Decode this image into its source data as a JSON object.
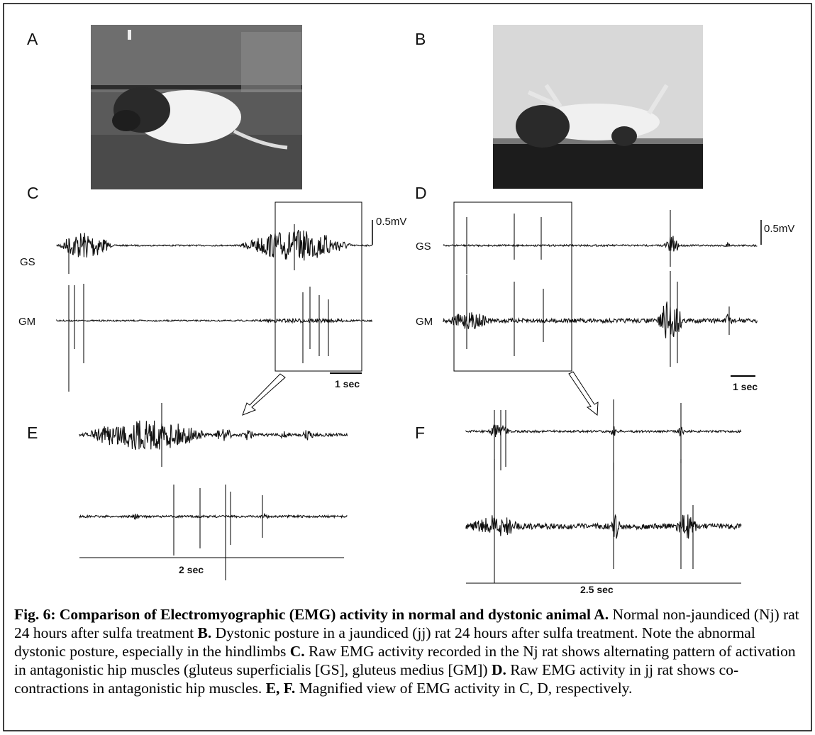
{
  "panels": {
    "a": {
      "label": "A"
    },
    "b": {
      "label": "B"
    },
    "c": {
      "label": "C",
      "trace_labels": [
        "GS",
        "GM"
      ],
      "amplitude_scale": "0.5mV",
      "time_scale": "1 sec"
    },
    "d": {
      "label": "D",
      "trace_labels": [
        "GS",
        "GM"
      ],
      "amplitude_scale": "0.5mV",
      "time_scale": "1 sec"
    },
    "e": {
      "label": "E",
      "time_scale": "2 sec"
    },
    "f": {
      "label": "F",
      "time_scale": "2.5 sec"
    }
  },
  "caption": {
    "parts": [
      {
        "text": "Fig. 6: Comparison of Electromyographic (EMG) activity in normal and dystonic animal A.",
        "bold": true
      },
      {
        "text": " Normal non-jaundiced (Nj) rat 24 hours after sulfa treatment ",
        "bold": false
      },
      {
        "text": "B.",
        "bold": true
      },
      {
        "text": " Dystonic posture in a jaundiced (jj) rat 24 hours after sulfa treatment. Note the abnormal dystonic posture, especially in the hindlimbs ",
        "bold": false
      },
      {
        "text": "C.",
        "bold": true
      },
      {
        "text": " Raw EMG activity recorded in the Nj rat shows alternating pattern of activation in antagonistic hip muscles (gluteus superficialis [GS], gluteus medius [GM]) ",
        "bold": false
      },
      {
        "text": "D.",
        "bold": true
      },
      {
        "text": " Raw EMG activity in jj rat shows co-contractions in antagonistic hip muscles. ",
        "bold": false
      },
      {
        "text": "E, F.",
        "bold": true
      },
      {
        "text": " Magnified view of EMG activity in C, D, respectively.",
        "bold": false
      }
    ]
  }
}
